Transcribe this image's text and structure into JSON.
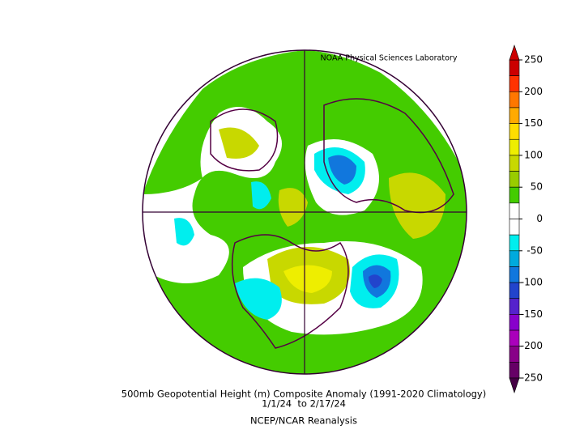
{
  "header": {
    "credit": "NOAA Physical Sciences Laboratory"
  },
  "caption": {
    "line1": "500mb Geopotential Height (m) Composite Anomaly (1991-2020 Climatology)",
    "line2": "1/1/24  to 2/17/24",
    "line3": "NCEP/NCAR Reanalysis"
  },
  "colorbar": {
    "ticks": [
      250,
      200,
      150,
      100,
      50,
      0,
      -50,
      -100,
      -150,
      -200,
      -250
    ],
    "colors": [
      "#cc0000",
      "#ff3300",
      "#ff7700",
      "#ffaa00",
      "#ffdd00",
      "#eeee00",
      "#c8d800",
      "#99cc00",
      "#44cc00",
      "#ffffff",
      "#ffffff",
      "#00eeee",
      "#00aadd",
      "#1177dd",
      "#2244cc",
      "#5522cc",
      "#8800cc",
      "#aa00bb",
      "#880088",
      "#660066"
    ],
    "extend_colors": [
      "#cc0000",
      "#440044"
    ]
  }
}
